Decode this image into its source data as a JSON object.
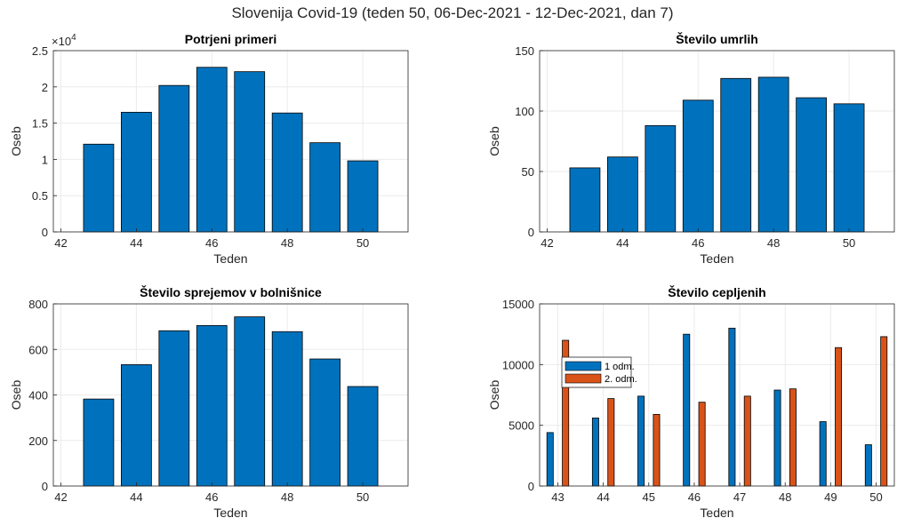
{
  "suptitle": "Slovenija Covid-19 (teden 50, 06-Dec-2021 - 12-Dec-2021, dan 7)",
  "colors": {
    "blue": "#0072BD",
    "orange": "#D95319",
    "grid": "#EBEBEB",
    "axis": "#262626"
  },
  "chart_data": [
    {
      "type": "bar",
      "title": "Potrjeni primeri",
      "xlabel": "Teden",
      "ylabel": "Oseb",
      "exponent_label": "×10",
      "exponent_power": "4",
      "categories": [
        43,
        44,
        45,
        46,
        47,
        48,
        49,
        50
      ],
      "values": [
        12100,
        16500,
        20200,
        22700,
        22100,
        16400,
        12300,
        9800
      ],
      "xlim": [
        41.8,
        51.2
      ],
      "ylim": [
        0,
        25000
      ],
      "xticks": [
        42,
        44,
        46,
        48,
        50
      ],
      "xtick_labels": [
        "42",
        "44",
        "46",
        "48",
        "50"
      ],
      "yticks": [
        0,
        5000,
        10000,
        15000,
        20000,
        25000
      ],
      "ytick_labels": [
        "0",
        "0.5",
        "1",
        "1.5",
        "2",
        "2.5"
      ],
      "grid": true
    },
    {
      "type": "bar",
      "title": "Število umrlih",
      "xlabel": "Teden",
      "ylabel": "Oseb",
      "categories": [
        43,
        44,
        45,
        46,
        47,
        48,
        49,
        50
      ],
      "values": [
        53,
        62,
        88,
        109,
        127,
        128,
        111,
        106
      ],
      "xlim": [
        41.8,
        51.2
      ],
      "ylim": [
        0,
        150
      ],
      "xticks": [
        42,
        44,
        46,
        48,
        50
      ],
      "xtick_labels": [
        "42",
        "44",
        "46",
        "48",
        "50"
      ],
      "yticks": [
        0,
        50,
        100,
        150
      ],
      "ytick_labels": [
        "0",
        "50",
        "100",
        "150"
      ],
      "grid": true
    },
    {
      "type": "bar",
      "title": "Število sprejemov v bolnišnice",
      "xlabel": "Teden",
      "ylabel": "Oseb",
      "categories": [
        43,
        44,
        45,
        46,
        47,
        48,
        49,
        50
      ],
      "values": [
        382,
        533,
        682,
        705,
        743,
        678,
        558,
        437
      ],
      "xlim": [
        41.8,
        51.2
      ],
      "ylim": [
        0,
        800
      ],
      "xticks": [
        42,
        44,
        46,
        48,
        50
      ],
      "xtick_labels": [
        "42",
        "44",
        "46",
        "48",
        "50"
      ],
      "yticks": [
        0,
        200,
        400,
        600,
        800
      ],
      "ytick_labels": [
        "0",
        "200",
        "400",
        "600",
        "800"
      ],
      "grid": true
    },
    {
      "type": "bar",
      "title": "Število cepljenih",
      "xlabel": "Teden",
      "ylabel": "Oseb",
      "categories": [
        43,
        44,
        45,
        46,
        47,
        48,
        49,
        50
      ],
      "series": [
        {
          "name": "1 odm.",
          "values": [
            4400,
            5600,
            7400,
            12500,
            13000,
            7900,
            5300,
            3400
          ]
        },
        {
          "name": "2. odm.",
          "values": [
            12000,
            7200,
            5900,
            6900,
            7400,
            8000,
            11400,
            12300
          ]
        }
      ],
      "xlim": [
        42.6,
        50.4
      ],
      "ylim": [
        0,
        15000
      ],
      "xticks": [
        43,
        44,
        45,
        46,
        47,
        48,
        49,
        50
      ],
      "xtick_labels": [
        "43",
        "44",
        "45",
        "46",
        "47",
        "48",
        "49",
        "50"
      ],
      "yticks": [
        0,
        5000,
        10000,
        15000
      ],
      "ytick_labels": [
        "0",
        "5000",
        "10000",
        "15000"
      ],
      "legend": "top-left",
      "grid": true
    }
  ]
}
